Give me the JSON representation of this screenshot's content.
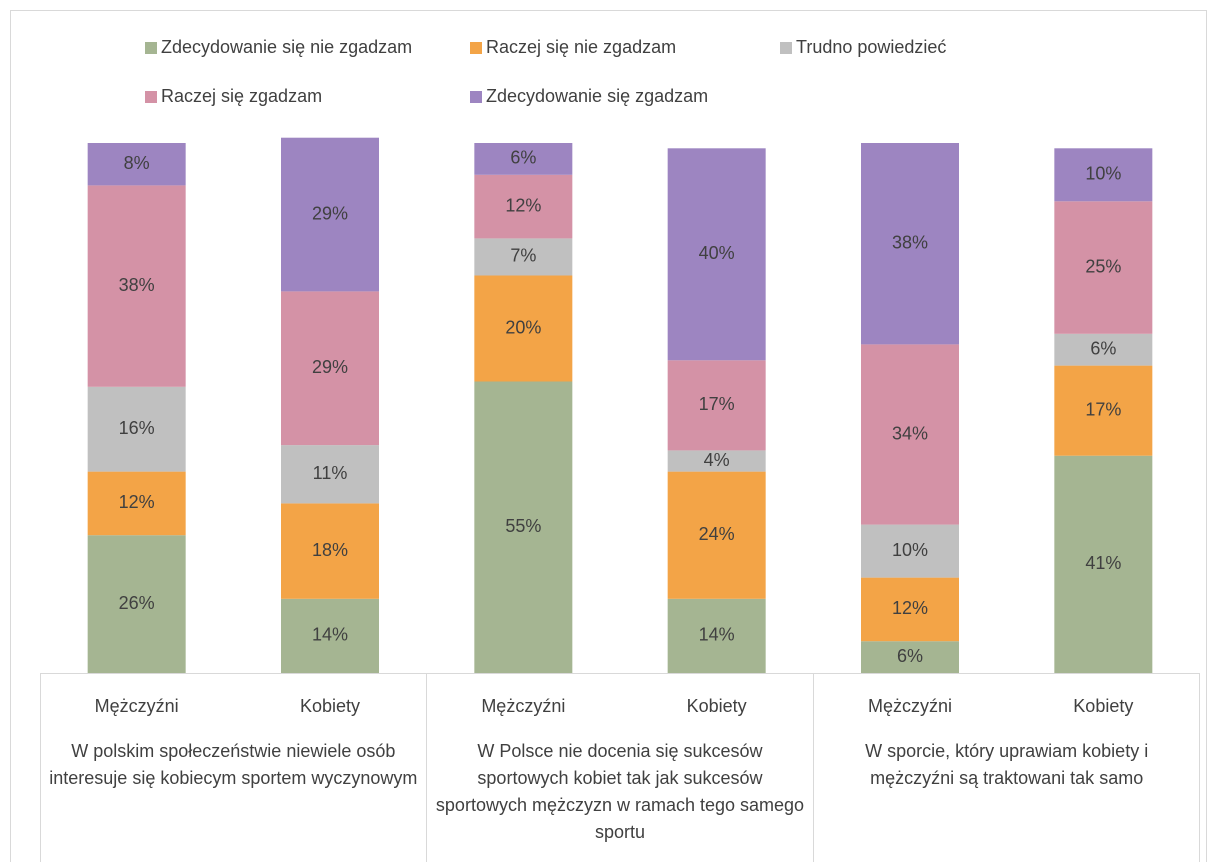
{
  "chart_data": {
    "type": "bar",
    "stacked": true,
    "categories": [
      "Mężczyźni",
      "Kobiety",
      "Mężczyźni",
      "Kobiety",
      "Mężczyźni",
      "Kobiety"
    ],
    "groups": [
      "W polskim społeczeństwie niewiele osób interesuje się kobiecym sportem wyczynowym",
      "W Polsce nie docenia się sukcesów sportowych kobiet tak jak sukcesów sportowych mężczyzn w ramach tego samego sportu",
      "W sporcie, który uprawiam kobiety i mężczyźni są traktowani tak samo"
    ],
    "ylim": [
      0,
      100
    ],
    "legend": "top",
    "series": [
      {
        "name": "Zdecydowanie się nie zgadzam",
        "color": "#a5b592",
        "values": [
          26,
          14,
          55,
          14,
          6,
          41
        ],
        "value_labels": [
          "26%",
          "14%",
          "55%",
          "14%",
          "6%",
          "41%"
        ]
      },
      {
        "name": "Raczej się nie zgadzam",
        "color": "#f3a447",
        "values": [
          12,
          18,
          20,
          24,
          12,
          17
        ],
        "value_labels": [
          "12%",
          "18%",
          "20%",
          "24%",
          "12%",
          "17%"
        ]
      },
      {
        "name": "Trudno powiedzieć",
        "color": "#c0c0c0",
        "values": [
          16,
          11,
          7,
          4,
          10,
          6
        ],
        "value_labels": [
          "16%",
          "11%",
          "7%",
          "4%",
          "10%",
          "6%"
        ]
      },
      {
        "name": "Raczej się zgadzam",
        "color": "#d492a6",
        "values": [
          38,
          29,
          12,
          17,
          34,
          25
        ],
        "value_labels": [
          "38%",
          "29%",
          "12%",
          "17%",
          "34%",
          "25%"
        ]
      },
      {
        "name": "Zdecydowanie się zgadzam",
        "color": "#9d85c1",
        "values": [
          8,
          29,
          6,
          40,
          38,
          10
        ],
        "value_labels": [
          "8%",
          "29%",
          "6%",
          "40%",
          "38%",
          "10%"
        ]
      }
    ]
  }
}
